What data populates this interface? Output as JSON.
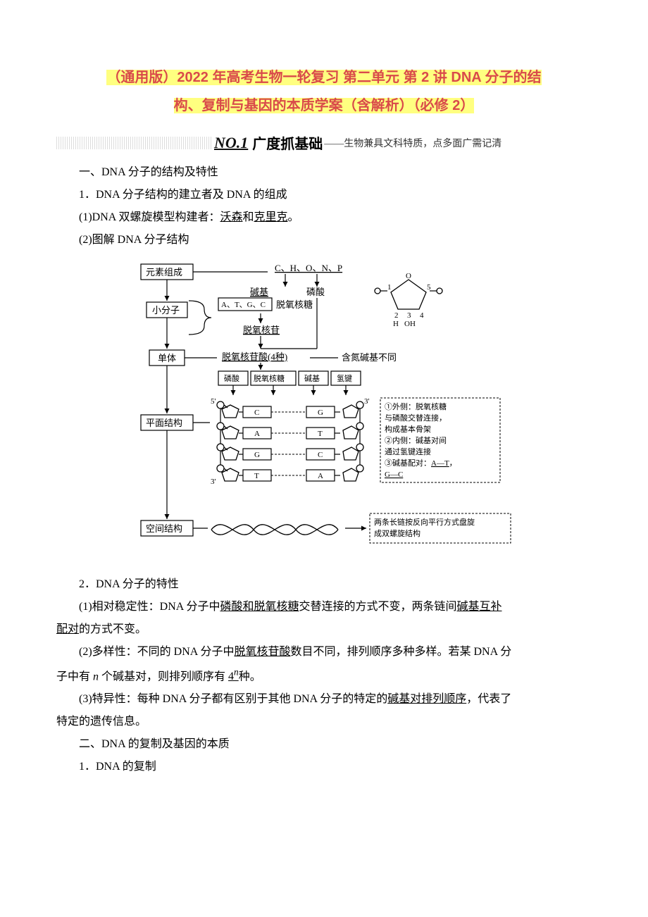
{
  "title_line1": "（通用版）2022 年高考生物一轮复习 第二单元 第 2 讲 DNA 分子的结",
  "title_line2": "构、复制与基因的本质学案（含解析）（必修 2）",
  "banner": {
    "num": "NO.1",
    "head": "广度抓基础",
    "sub": "——生物兼具文科特质，点多面广需记清"
  },
  "s1": "一、DNA 分子的结构及特性",
  "s1_1": "1．DNA 分子结构的建立者及 DNA 的组成",
  "s1_1_1a": "(1)DNA 双螺旋模型构建者：",
  "s1_1_1b": "沃森",
  "s1_1_1c": "和",
  "s1_1_1d": "克里克",
  "s1_1_1e": "。",
  "s1_1_2": "(2)图解 DNA 分子结构",
  "diagram": {
    "col": {
      "elem": "元素组成",
      "small": "小分子",
      "mono": "单体",
      "flat": "平面结构",
      "space": "空间结构"
    },
    "chonp": "C、H、O、N、P",
    "base": "碱基",
    "phos": "磷酸",
    "atgc": "A、T、G、C",
    "deoxy": "脱氧核糖",
    "nucleoside": "脱氧核苷",
    "nucleotide": "脱氧核苷酸(4种)",
    "diffbase": "含氮碱基不同",
    "row_phos": "磷酸",
    "row_sugar": "脱氧核糖",
    "row_base": "碱基",
    "row_hbond": "氢键",
    "pentose": {
      "n1": "1",
      "n2": "2",
      "n3": "3",
      "n4": "4",
      "n5": "5",
      "O": "O",
      "H": "H",
      "OH": "OH"
    },
    "pairs": [
      [
        "C",
        "G"
      ],
      [
        "A",
        "T"
      ],
      [
        "G",
        "C"
      ],
      [
        "T",
        "A"
      ]
    ],
    "prime5": "5'",
    "prime3a": "3'",
    "prime3b": "3'",
    "notes": {
      "n1a": "①外侧：脱氧核糖",
      "n1b": "与磷酸交替连接，",
      "n1c": "构成基本骨架",
      "n2a": "②内侧：碱基对间",
      "n2b": "通过氢键连接",
      "n3a": "③碱基配对：",
      "n3b": "A—T",
      "n3c": "，",
      "n3d": "G—C"
    },
    "helix1": "两条长链按反向平行方式盘旋",
    "helix2": "成双螺旋结构"
  },
  "s1_2": "2．DNA 分子的特性",
  "s1_2_1a": "(1)相对稳定性：DNA 分子中",
  "s1_2_1b": "磷酸和脱氧核糖",
  "s1_2_1c": "交替连接的方式不变，两条链间",
  "s1_2_1d": "碱基互补",
  "s1_2_1d2": "配对",
  "s1_2_1e": "的方式不变。",
  "s1_2_2a": "(2)多样性：不同的 DNA 分子中",
  "s1_2_2b": "脱氧核苷酸",
  "s1_2_2c": "数目不同，排列顺序多种多样。若某 DNA 分",
  "s1_2_2d": "子中有 ",
  "s1_2_2e": "n",
  "s1_2_2f": " 个碱基对，则排列顺序有 ",
  "s1_2_2g": "4",
  "s1_2_2h": "n",
  "s1_2_2i": "种。",
  "s1_2_3a": "(3)特异性：每种 DNA 分子都有区别于其他 DNA 分子的特定的",
  "s1_2_3b": "碱基对排列顺序",
  "s1_2_3c": "，代表了",
  "s1_2_3d": "特定的遗传信息。",
  "s2": "二、DNA 的复制及基因的本质",
  "s2_1": "1．DNA 的复制"
}
